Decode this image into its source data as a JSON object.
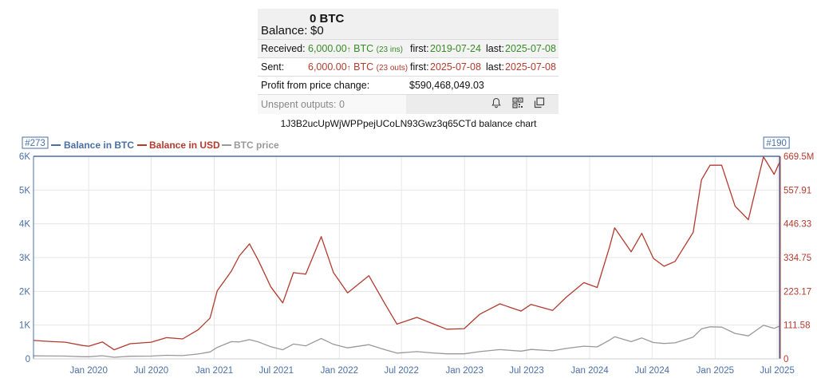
{
  "wallet": {
    "amount": "0 BTC",
    "balance_label": "Balance:",
    "balance_value": "$0",
    "received": {
      "label": "Received:",
      "amount": "6,000.00",
      "arrow": "↑",
      "unit": " BTC",
      "count": "(23 ins)",
      "first_label": "first:",
      "first": "2019-07-24",
      "last_label": "last:",
      "last": "2025-07-08"
    },
    "sent": {
      "label": "Sent:",
      "amount": "6,000.00",
      "arrow": "↑",
      "unit": " BTC",
      "count": "(23 outs)",
      "first_label": "first:",
      "first": "2025-07-08",
      "last_label": "last:",
      "last": "2025-07-08"
    },
    "profit": {
      "label": "Profit from price change:",
      "value": "$590,468,049.03"
    },
    "unspent": "Unspent outputs: 0",
    "icons": [
      "bell-icon",
      "qr-code-icon",
      "copy-icon"
    ]
  },
  "chart_title": "1J3B2ucUpWjWPPpejUCoLN93Gwz3q65CTd balance chart",
  "chart_data": {
    "type": "line",
    "title": "1J3B2ucUpWjWPPpejUCoLN93Gwz3q65CTd balance chart",
    "legend": [
      "Balance in BTC",
      "Balance in USD",
      "BTC price"
    ],
    "legend_placement": "top-left",
    "colors": {
      "btc": "#4a6fa5",
      "usd": "#b33a2e",
      "price": "#999999",
      "grid": "#e6e6e6"
    },
    "left_axis": {
      "ticks": [
        "0",
        "1K",
        "2K",
        "3K",
        "4K",
        "5K",
        "6K"
      ],
      "values": [
        0,
        1000,
        2000,
        3000,
        4000,
        5000,
        6000
      ]
    },
    "right_axis": {
      "ticks": [
        "0",
        "111.58",
        "223.17",
        "334.75",
        "446.33",
        "557.91",
        "669.5M"
      ],
      "values": [
        0,
        111.58,
        223.17,
        334.75,
        446.33,
        557.91,
        669.5
      ]
    },
    "x_ticks": [
      "Jan 2020",
      "Jul 2020",
      "Jan 2021",
      "Jul 2021",
      "Jan 2022",
      "Jul 2022",
      "Jan 2023",
      "Jul 2023",
      "Jan 2024",
      "Jul 2024",
      "Jan 2025",
      "Jul 2025"
    ],
    "x_range": [
      "2019-07-24",
      "2025-07-10"
    ],
    "flags": [
      {
        "text": "#273",
        "date": "2019-07-24"
      },
      {
        "text": "#190",
        "date": "2025-07-08"
      }
    ],
    "series": [
      {
        "name": "Balance in BTC",
        "axis": "left",
        "points": [
          [
            "2019-07-24",
            6000
          ],
          [
            "2025-07-08",
            6000
          ],
          [
            "2025-07-08",
            0
          ]
        ]
      },
      {
        "name": "Balance in USD",
        "axis": "right",
        "points": [
          [
            "2019-07-24",
            61
          ],
          [
            "2019-09-01",
            58
          ],
          [
            "2019-10-25",
            55
          ],
          [
            "2019-12-15",
            44
          ],
          [
            "2020-01-01",
            42
          ],
          [
            "2020-02-10",
            56
          ],
          [
            "2020-03-15",
            30
          ],
          [
            "2020-05-01",
            50
          ],
          [
            "2020-07-01",
            55
          ],
          [
            "2020-08-15",
            70
          ],
          [
            "2020-10-01",
            66
          ],
          [
            "2020-11-15",
            96
          ],
          [
            "2020-12-20",
            135
          ],
          [
            "2021-01-10",
            225
          ],
          [
            "2021-02-20",
            290
          ],
          [
            "2021-03-15",
            340
          ],
          [
            "2021-04-14",
            380
          ],
          [
            "2021-05-10",
            325
          ],
          [
            "2021-06-15",
            238
          ],
          [
            "2021-07-20",
            185
          ],
          [
            "2021-08-20",
            285
          ],
          [
            "2021-09-25",
            280
          ],
          [
            "2021-11-09",
            404
          ],
          [
            "2021-12-15",
            285
          ],
          [
            "2022-01-25",
            218
          ],
          [
            "2022-03-28",
            275
          ],
          [
            "2022-05-15",
            180
          ],
          [
            "2022-06-18",
            115
          ],
          [
            "2022-08-15",
            137
          ],
          [
            "2022-10-01",
            116
          ],
          [
            "2022-11-10",
            98
          ],
          [
            "2022-12-31",
            100
          ],
          [
            "2023-02-15",
            148
          ],
          [
            "2023-04-14",
            182
          ],
          [
            "2023-06-15",
            158
          ],
          [
            "2023-07-14",
            180
          ],
          [
            "2023-09-15",
            160
          ],
          [
            "2023-10-25",
            204
          ],
          [
            "2023-12-15",
            252
          ],
          [
            "2024-01-23",
            236
          ],
          [
            "2024-02-28",
            370
          ],
          [
            "2024-03-14",
            433
          ],
          [
            "2024-05-01",
            354
          ],
          [
            "2024-06-01",
            415
          ],
          [
            "2024-07-05",
            332
          ],
          [
            "2024-08-05",
            306
          ],
          [
            "2024-09-06",
            322
          ],
          [
            "2024-10-29",
            418
          ],
          [
            "2024-11-22",
            592
          ],
          [
            "2024-12-17",
            640
          ],
          [
            "2025-01-20",
            640
          ],
          [
            "2025-02-28",
            505
          ],
          [
            "2025-04-08",
            460
          ],
          [
            "2025-05-22",
            668
          ],
          [
            "2025-06-22",
            610
          ],
          [
            "2025-07-08",
            650
          ]
        ]
      },
      {
        "name": "BTC price",
        "axis": "right",
        "points": [
          [
            "2019-07-24",
            9.9
          ],
          [
            "2019-09-01",
            9.6
          ],
          [
            "2019-10-25",
            9.2
          ],
          [
            "2019-12-15",
            7.2
          ],
          [
            "2020-01-01",
            7.2
          ],
          [
            "2020-02-10",
            10.2
          ],
          [
            "2020-03-15",
            5.2
          ],
          [
            "2020-05-01",
            8.8
          ],
          [
            "2020-07-01",
            9.2
          ],
          [
            "2020-08-15",
            11.8
          ],
          [
            "2020-10-01",
            10.8
          ],
          [
            "2020-11-15",
            16.0
          ],
          [
            "2020-12-20",
            23.0
          ],
          [
            "2021-01-10",
            38.0
          ],
          [
            "2021-02-20",
            57.0
          ],
          [
            "2021-03-15",
            56.0
          ],
          [
            "2021-04-14",
            63.5
          ],
          [
            "2021-05-10",
            56.0
          ],
          [
            "2021-06-15",
            40.0
          ],
          [
            "2021-07-20",
            30.0
          ],
          [
            "2021-08-20",
            49.0
          ],
          [
            "2021-09-25",
            43.0
          ],
          [
            "2021-11-09",
            67.5
          ],
          [
            "2021-12-15",
            48.0
          ],
          [
            "2022-01-25",
            36.5
          ],
          [
            "2022-03-28",
            47.0
          ],
          [
            "2022-05-15",
            30.0
          ],
          [
            "2022-06-18",
            19.0
          ],
          [
            "2022-08-15",
            24.0
          ],
          [
            "2022-10-01",
            19.5
          ],
          [
            "2022-11-10",
            16.5
          ],
          [
            "2022-12-31",
            16.6
          ],
          [
            "2023-02-15",
            24.0
          ],
          [
            "2023-04-14",
            30.5
          ],
          [
            "2023-06-15",
            25.5
          ],
          [
            "2023-07-14",
            31.0
          ],
          [
            "2023-09-15",
            26.5
          ],
          [
            "2023-10-25",
            34.5
          ],
          [
            "2023-12-15",
            42.0
          ],
          [
            "2024-01-23",
            39.5
          ],
          [
            "2024-02-28",
            62.0
          ],
          [
            "2024-03-14",
            73.0
          ],
          [
            "2024-05-01",
            57.0
          ],
          [
            "2024-06-01",
            69.0
          ],
          [
            "2024-07-05",
            54.0
          ],
          [
            "2024-08-05",
            51.0
          ],
          [
            "2024-09-06",
            53.0
          ],
          [
            "2024-10-29",
            72.0
          ],
          [
            "2024-11-22",
            99.0
          ],
          [
            "2024-12-17",
            106.0
          ],
          [
            "2025-01-20",
            105.0
          ],
          [
            "2025-02-28",
            84.0
          ],
          [
            "2025-04-08",
            76.0
          ],
          [
            "2025-05-22",
            111.0
          ],
          [
            "2025-06-22",
            101.0
          ],
          [
            "2025-07-08",
            108.0
          ]
        ]
      }
    ]
  }
}
